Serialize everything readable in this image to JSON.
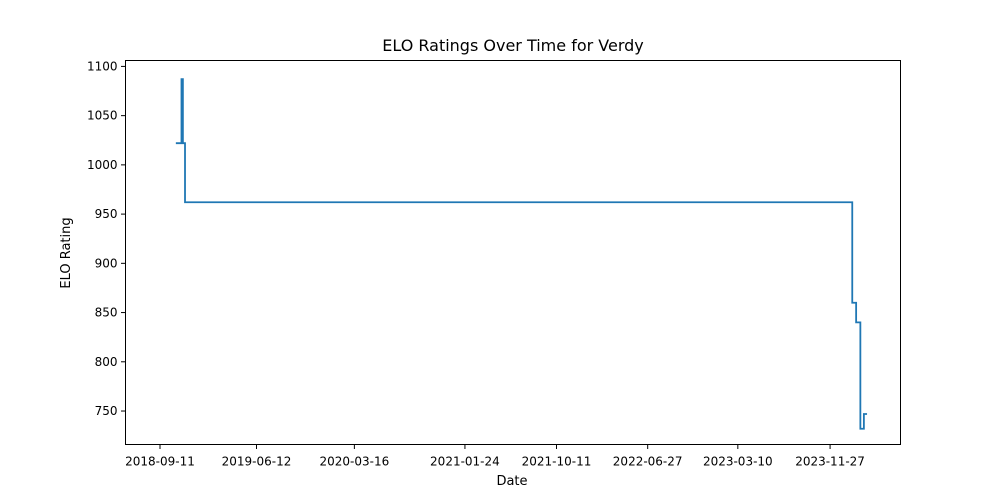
{
  "chart_data": {
    "type": "line",
    "title": "ELO Ratings Over Time for Verdy",
    "xlabel": "Date",
    "ylabel": "ELO Rating",
    "grid": false,
    "line_color": "#1f77b4",
    "xlim": [
      "2018-06-05",
      "2024-06-14"
    ],
    "ylim": [
      716,
      1106
    ],
    "x_ticks": [
      "2018-09-11",
      "2019-06-12",
      "2020-03-16",
      "2021-01-24",
      "2021-10-11",
      "2022-06-27",
      "2023-03-10",
      "2023-11-27"
    ],
    "y_ticks": [
      750,
      800,
      850,
      900,
      950,
      1000,
      1050,
      1100
    ],
    "series": [
      {
        "x": [
          "2018-10-26",
          "2018-11-11",
          "2018-11-11",
          "2018-11-15",
          "2018-11-15",
          "2018-11-21",
          "2018-11-21",
          "2024-01-29",
          "2024-01-29",
          "2024-02-09",
          "2024-02-09",
          "2024-02-21",
          "2024-02-21",
          "2024-03-02",
          "2024-03-02",
          "2024-03-11"
        ],
        "y": [
          1022,
          1022,
          1087,
          1087,
          1022,
          1022,
          962,
          962,
          860,
          860,
          840,
          840,
          732,
          732,
          747,
          747
        ]
      }
    ]
  }
}
